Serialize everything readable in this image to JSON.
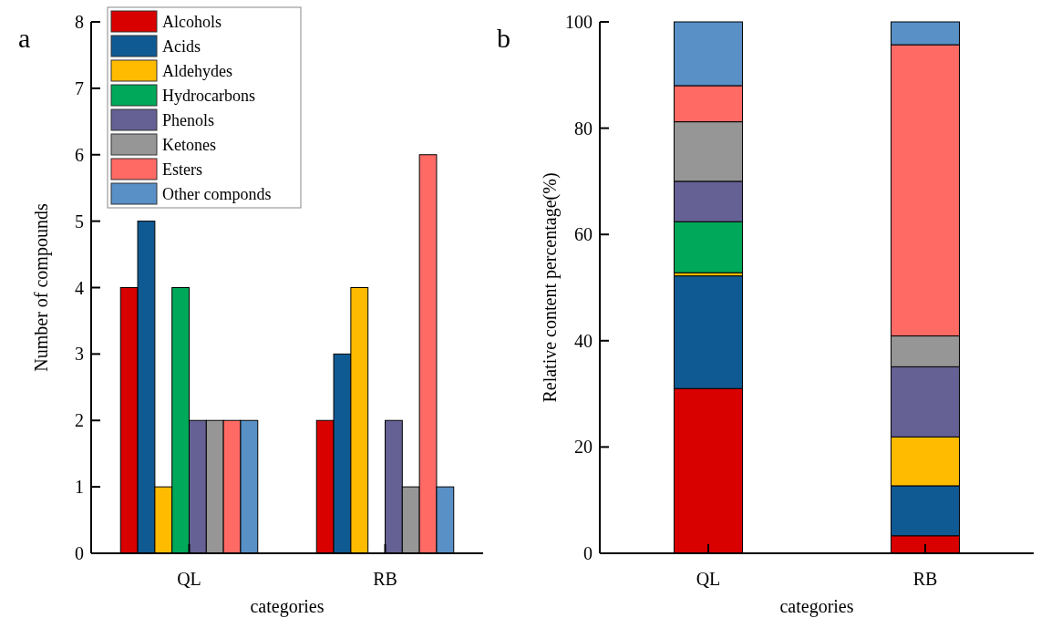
{
  "chart_data": [
    {
      "type": "bar",
      "title": "a",
      "xlabel": "categories",
      "ylabel": "Number of compounds",
      "categories": [
        "QL",
        "RB"
      ],
      "ylim": [
        0,
        8
      ],
      "yticks": [
        0,
        1,
        2,
        3,
        4,
        5,
        6,
        7,
        8
      ],
      "legend": "top left",
      "series": [
        {
          "name": "Alcohols",
          "color": "#d90000",
          "values": [
            4,
            2
          ]
        },
        {
          "name": "Acids",
          "color": "#105a94",
          "values": [
            5,
            3
          ]
        },
        {
          "name": "Aldehydes",
          "color": "#ffbb00",
          "values": [
            1,
            4
          ]
        },
        {
          "name": "Hydrocarbons",
          "color": "#00a859",
          "values": [
            4,
            0
          ]
        },
        {
          "name": "Phenols",
          "color": "#656194",
          "values": [
            2,
            2
          ]
        },
        {
          "name": "Ketones",
          "color": "#969696",
          "values": [
            2,
            1
          ]
        },
        {
          "name": "Esters",
          "color": "#ff6a65",
          "values": [
            2,
            6
          ]
        },
        {
          "name": "Other componds",
          "color": "#5990c6",
          "values": [
            2,
            1
          ]
        }
      ]
    },
    {
      "type": "bar",
      "title": "b",
      "xlabel": "categories",
      "ylabel": "Relative content percentage(%)",
      "categories": [
        "QL",
        "RB"
      ],
      "ylim": [
        0,
        100
      ],
      "yticks": [
        0,
        20,
        40,
        60,
        80,
        100
      ],
      "stacked": true,
      "series": [
        {
          "color": "#d90000",
          "values": [
            31.0,
            3.3
          ]
        },
        {
          "color": "#105a94",
          "values": [
            21.2,
            9.4
          ]
        },
        {
          "color": "#ffbb00",
          "values": [
            0.6,
            9.2
          ]
        },
        {
          "color": "#00a859",
          "values": [
            9.6,
            0
          ]
        },
        {
          "color": "#656194",
          "values": [
            7.6,
            13.2
          ]
        },
        {
          "color": "#969696",
          "values": [
            11.2,
            5.8
          ]
        },
        {
          "color": "#ff6a65",
          "values": [
            6.8,
            54.8
          ]
        },
        {
          "color": "#5990c6",
          "values": [
            12.0,
            4.3
          ]
        }
      ]
    }
  ]
}
